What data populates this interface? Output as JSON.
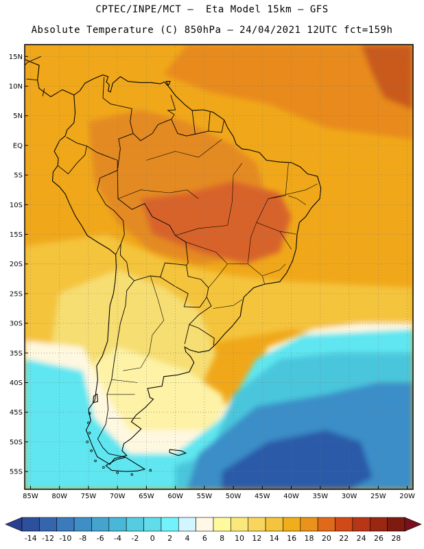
{
  "header": {
    "line1": "CPTEC/INPE/MCT –  Eta Model 15km – GFS",
    "line2": "Absolute Temperature (C) 850hPa – 24/04/2021 12UTC fct=159h"
  },
  "map": {
    "lon_range": [
      -86,
      -19
    ],
    "lat_range": [
      -58,
      17
    ],
    "lat_ticks": [
      {
        "value": 15,
        "label": "15N"
      },
      {
        "value": 10,
        "label": "10N"
      },
      {
        "value": 5,
        "label": "5N"
      },
      {
        "value": 0,
        "label": "EQ"
      },
      {
        "value": -5,
        "label": "5S"
      },
      {
        "value": -10,
        "label": "10S"
      },
      {
        "value": -15,
        "label": "15S"
      },
      {
        "value": -20,
        "label": "20S"
      },
      {
        "value": -25,
        "label": "25S"
      },
      {
        "value": -30,
        "label": "30S"
      },
      {
        "value": -35,
        "label": "35S"
      },
      {
        "value": -40,
        "label": "40S"
      },
      {
        "value": -45,
        "label": "45S"
      },
      {
        "value": -50,
        "label": "50S"
      },
      {
        "value": -55,
        "label": "55S"
      }
    ],
    "lon_ticks": [
      {
        "value": -85,
        "label": "85W"
      },
      {
        "value": -80,
        "label": "80W"
      },
      {
        "value": -75,
        "label": "75W"
      },
      {
        "value": -70,
        "label": "70W"
      },
      {
        "value": -65,
        "label": "65W"
      },
      {
        "value": -60,
        "label": "60W"
      },
      {
        "value": -55,
        "label": "55W"
      },
      {
        "value": -50,
        "label": "50W"
      },
      {
        "value": -45,
        "label": "45W"
      },
      {
        "value": -40,
        "label": "40W"
      },
      {
        "value": -35,
        "label": "35W"
      },
      {
        "value": -30,
        "label": "30W"
      },
      {
        "value": -25,
        "label": "25W"
      },
      {
        "value": -20,
        "label": "20W"
      }
    ],
    "temperature_regions": [
      {
        "name": "tropical-background",
        "level": 18,
        "color": "#f0a81a"
      },
      {
        "name": "tropical-north-ocean",
        "level": 20,
        "color": "#e88a1a"
      },
      {
        "name": "amazon-warm",
        "level": 20,
        "color": "#e48a22"
      },
      {
        "name": "central-brazil-warm",
        "level": 22,
        "color": "#d8642a"
      },
      {
        "name": "caribbean-hot",
        "level": 22,
        "color": "#c95a1f"
      },
      {
        "name": "subtropics",
        "level": 16,
        "color": "#f4c43e"
      },
      {
        "name": "argentina-mid",
        "level": 12,
        "color": "#f6de72"
      },
      {
        "name": "argentina-cool",
        "level": 10,
        "color": "#fdf2a6"
      },
      {
        "name": "cool-front",
        "level": 6,
        "color": "#fff8e0"
      },
      {
        "name": "cold-ocean",
        "level": 2,
        "color": "#5fe6f0"
      },
      {
        "name": "colder-ocean",
        "level": -2,
        "color": "#4ac6dc"
      },
      {
        "name": "deep-cold",
        "level": -6,
        "color": "#3a8ec8"
      },
      {
        "name": "coldest-core",
        "level": -10,
        "color": "#2a5aa8"
      }
    ]
  },
  "colorbar": {
    "labels": [
      "-14",
      "-12",
      "-10",
      "-8",
      "-6",
      "-4",
      "-2",
      "0",
      "2",
      "4",
      "6",
      "8",
      "10",
      "12",
      "14",
      "16",
      "18",
      "20",
      "22",
      "24",
      "26",
      "28"
    ],
    "colors": [
      "#2d4f9c",
      "#3566ad",
      "#3b7abb",
      "#3f8fc6",
      "#44a4cd",
      "#49b7d6",
      "#55cce0",
      "#61dcea",
      "#72f2fa",
      "#d2f6ff",
      "#fff8e6",
      "#fffa9e",
      "#fbe87c",
      "#f8d65e",
      "#f4c43e",
      "#f0ae1a",
      "#ea921a",
      "#e06a1a",
      "#cf4a18",
      "#b63616",
      "#992712",
      "#7e1b10"
    ],
    "under_color": "#2a3f8f",
    "over_color": "#7a0f1e"
  }
}
